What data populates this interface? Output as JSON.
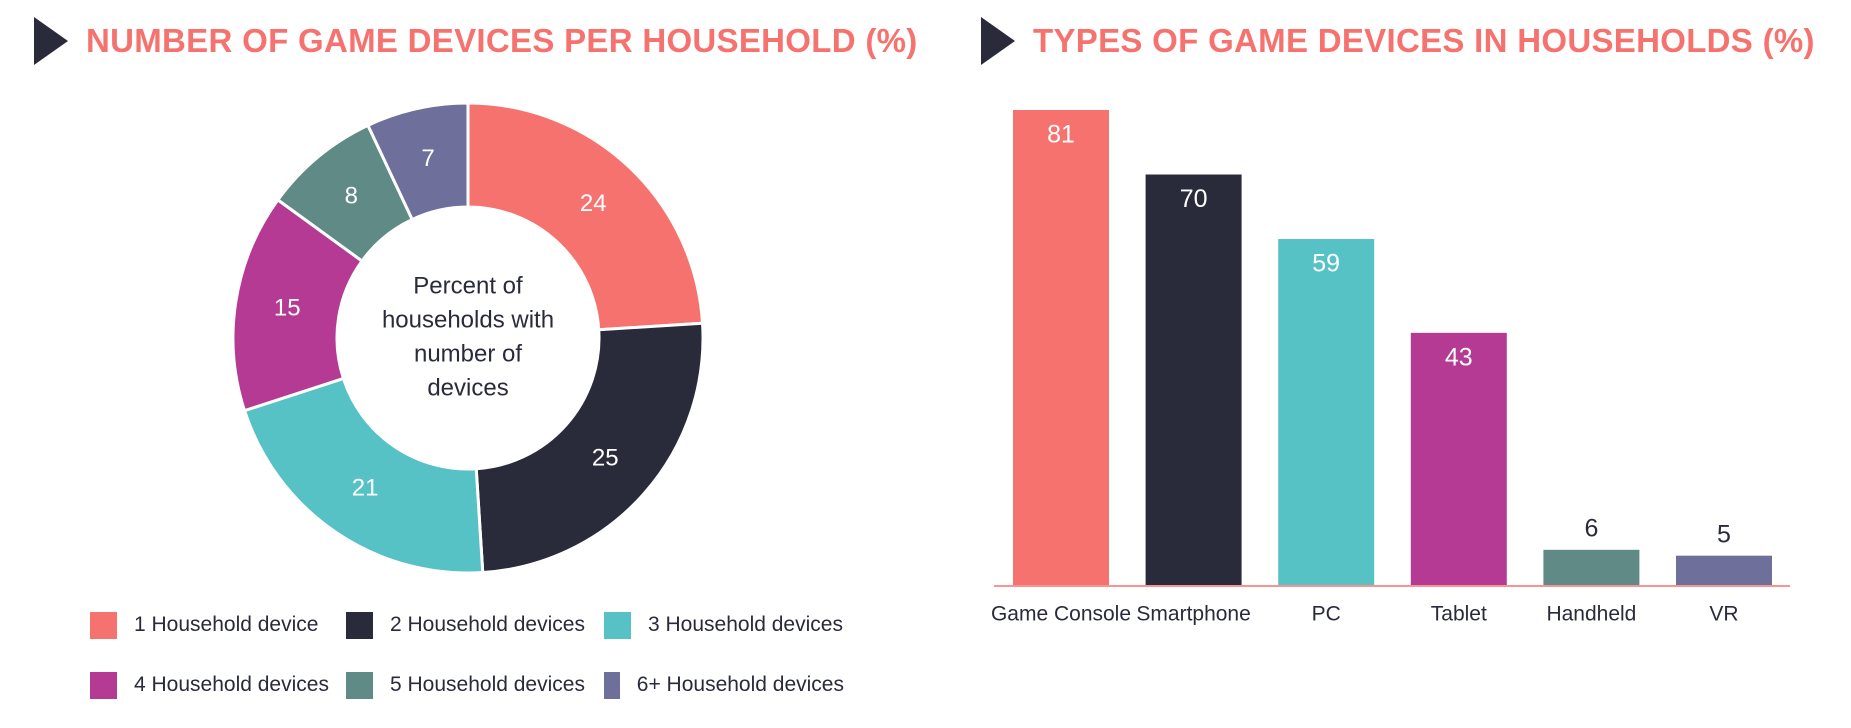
{
  "colors": {
    "title": "#f6726f",
    "arrow": "#2a2b3a",
    "text": "#2a2b3a",
    "baseline": "#f6726f",
    "palette": [
      "#f6726f",
      "#2a2b3a",
      "#56c2c6",
      "#b53a93",
      "#5f8a85",
      "#6f6f9b"
    ]
  },
  "chart_data": [
    {
      "type": "pie",
      "title": "NUMBER OF GAME DEVICES PER HOUSEHOLD (%)",
      "center_label": "Percent of households with number of devices",
      "center_lines": [
        "Percent of",
        "households with",
        "number of",
        "devices"
      ],
      "categories": [
        "1 Household device",
        "2 Household devices",
        "3 Household devices",
        "4 Household devices",
        "5 Household devices",
        "6+ Household devices"
      ],
      "values": [
        24,
        25,
        21,
        15,
        8,
        7
      ],
      "colors": [
        "#f6726f",
        "#2a2b3a",
        "#56c2c6",
        "#b53a93",
        "#5f8a85",
        "#6f6f9b"
      ],
      "legend": "bottom",
      "donut": true
    },
    {
      "type": "bar",
      "title": "TYPES OF GAME DEVICES IN HOUSEHOLDS (%)",
      "categories": [
        "Game Console",
        "Smartphone",
        "PC",
        "Tablet",
        "Handheld",
        "VR"
      ],
      "values": [
        81,
        70,
        59,
        43,
        6,
        5
      ],
      "colors": [
        "#f6726f",
        "#2a2b3a",
        "#56c2c6",
        "#b53a93",
        "#5f8a85",
        "#6f6f9b"
      ],
      "ylim": [
        0,
        81
      ],
      "grid": false,
      "xlabel": "",
      "ylabel": ""
    }
  ]
}
